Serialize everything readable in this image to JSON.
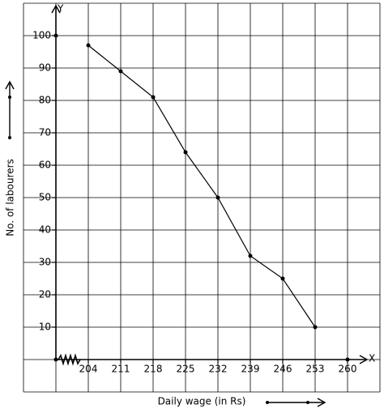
{
  "chart_data": {
    "type": "line",
    "x_label": "Daily wage (in Rs)",
    "y_label": "No. of labourers",
    "x_axis_name": "X",
    "y_axis_name": "Y",
    "x": [
      204,
      211,
      218,
      225,
      232,
      239,
      246,
      253
    ],
    "series": [
      {
        "values": [
          97,
          89,
          81,
          64,
          50,
          32,
          25,
          10
        ],
        "color": "#000000"
      }
    ],
    "xlim": [
      197,
      267
    ],
    "ylim": [
      -10,
      110
    ],
    "xticks": [
      204,
      211,
      218,
      225,
      232,
      239,
      246,
      253,
      260
    ],
    "yticks": [
      10,
      20,
      30,
      40,
      50,
      60,
      70,
      80,
      90,
      100
    ],
    "grid": true
  }
}
